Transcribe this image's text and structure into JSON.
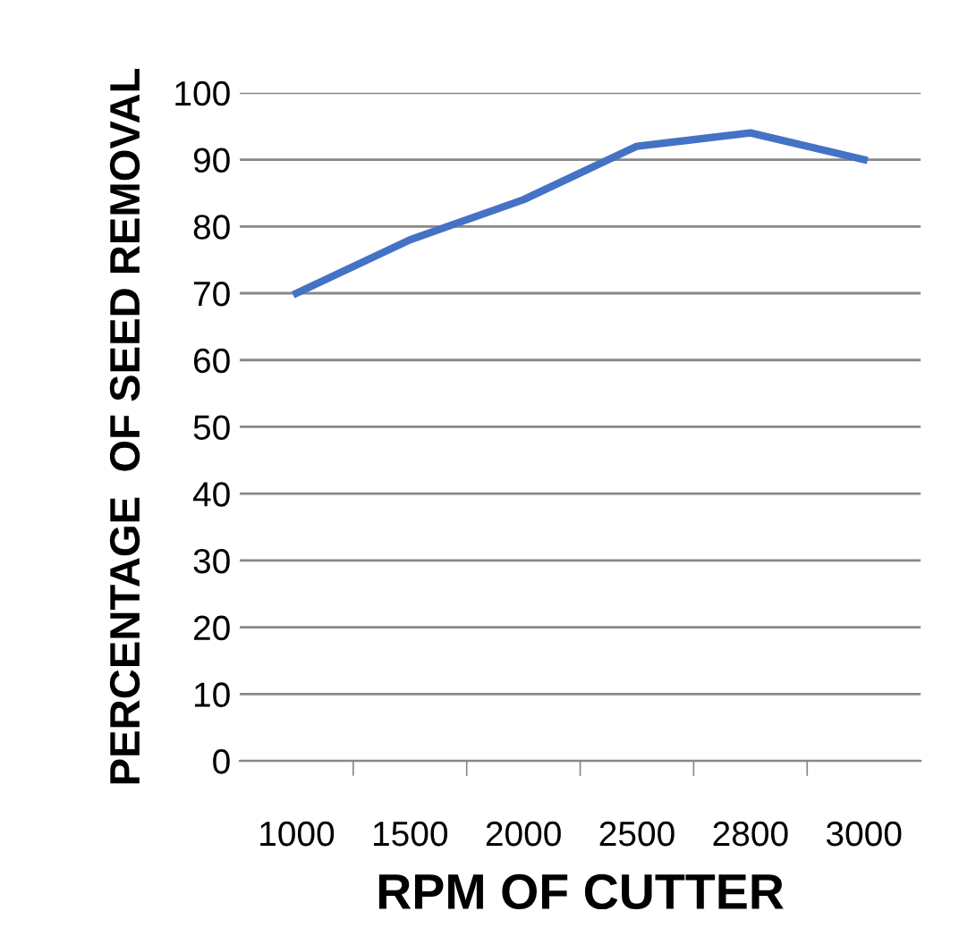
{
  "chart_data": {
    "type": "line",
    "xlabel": "RPM OF CUTTER",
    "ylabel": "PERCENTAGE  OF SEED REMOVAL",
    "categories": [
      "1000",
      "1500",
      "2000",
      "2500",
      "2800",
      "3000"
    ],
    "series": [
      {
        "color": "#4472c4",
        "values": [
          70,
          78,
          84,
          92,
          94,
          90
        ]
      }
    ],
    "ylim": [
      0,
      100
    ],
    "yticks": [
      0,
      10,
      20,
      30,
      40,
      50,
      60,
      70,
      80,
      90,
      100
    ],
    "grid": "y",
    "marker": "none",
    "line_style": "solid"
  }
}
